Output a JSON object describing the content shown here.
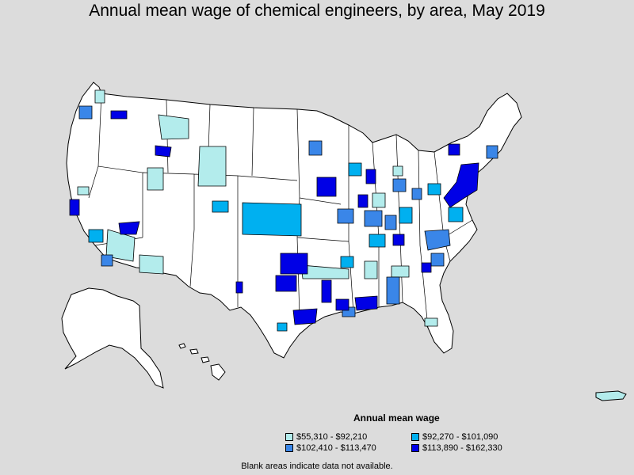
{
  "title": "Annual mean wage of chemical engineers, by area, May 2019",
  "legend": {
    "title": "Annual mean wage",
    "items": [
      {
        "label": "$55,310 - $92,210",
        "color": "#b3ecec"
      },
      {
        "label": "$92,270 - $101,090",
        "color": "#00b0f0"
      },
      {
        "label": "$102,410 - $113,470",
        "color": "#3a86e8"
      },
      {
        "label": "$113,890 - $162,330",
        "color": "#0000e6"
      }
    ]
  },
  "footnote": "Blank areas indicate data not available.",
  "colors": {
    "background": "#dcdcdc",
    "land": "#ffffff",
    "border": "#000000"
  }
}
